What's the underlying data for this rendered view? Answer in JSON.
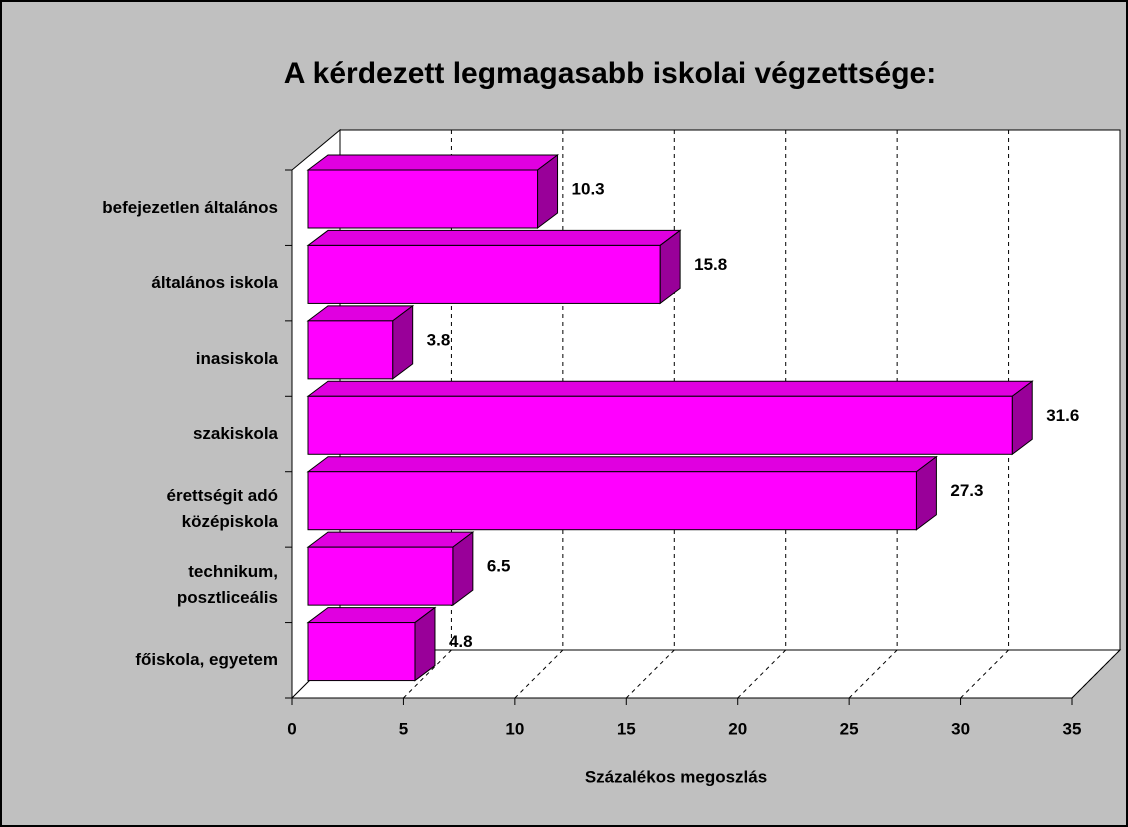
{
  "chart_data": {
    "type": "bar",
    "title": "A kérdezett legmagasabb iskolai végzettsége:",
    "categories": [
      "befejezetlen általános",
      "általános iskola",
      "inasiskola",
      "szakiskola",
      "érettségit adó\nközépiskola",
      "technikum,\nposztliceális",
      "főiskola, egyetem"
    ],
    "values": [
      10.3,
      15.8,
      3.8,
      31.6,
      27.3,
      6.5,
      4.8
    ],
    "color": "#ff00ff",
    "xlim": [
      0,
      35
    ],
    "xticks": [
      0,
      5,
      10,
      15,
      20,
      25,
      30,
      35
    ],
    "xlabel": "Százalékos megoszlás",
    "grid": true
  }
}
